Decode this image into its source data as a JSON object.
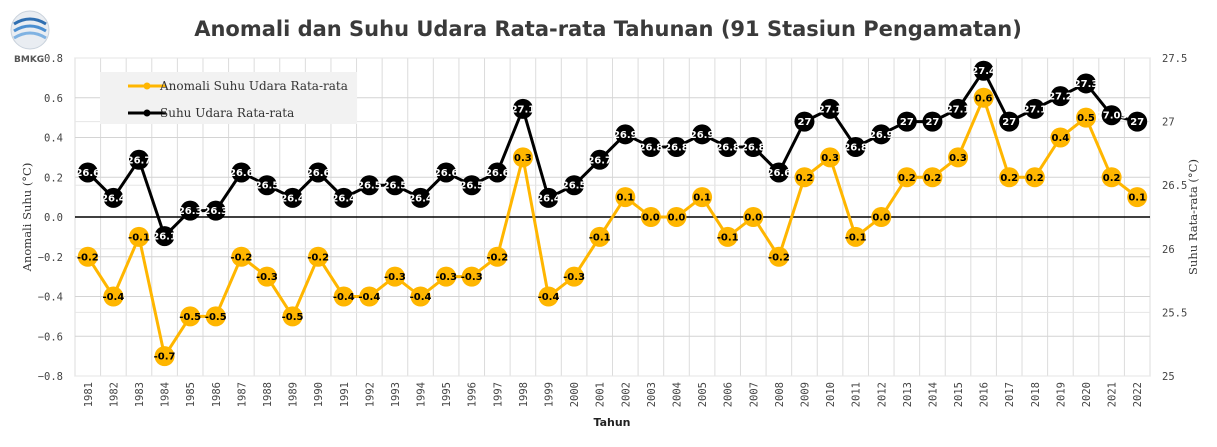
{
  "logo": {
    "text": "BMKG"
  },
  "chart_data": {
    "type": "line",
    "title": "Anomali dan Suhu Udara Rata-rata Tahunan (91 Stasiun Pengamatan)",
    "xlabel": "Tahun",
    "ylabel_left": "Anomali Suhu (°C)",
    "ylabel_right": "Suhu Rata-rata (°C)",
    "ylim_left": [
      -0.8,
      0.8
    ],
    "ylim_right": [
      25,
      27.5
    ],
    "yticks_left": [
      "−0.8",
      "−0.6",
      "−0.4",
      "−0.2",
      "0.0",
      "0.2",
      "0.4",
      "0.6",
      "0.8"
    ],
    "yticks_right": [
      "25",
      "25.5",
      "26",
      "26.5",
      "27",
      "27.5"
    ],
    "grid": true,
    "legend_position": "top-left",
    "categories": [
      "1981",
      "1982",
      "1983",
      "1984",
      "1985",
      "1986",
      "1987",
      "1988",
      "1989",
      "1990",
      "1991",
      "1992",
      "1993",
      "1994",
      "1995",
      "1996",
      "1997",
      "1998",
      "1999",
      "2000",
      "2001",
      "2002",
      "2003",
      "2004",
      "2005",
      "2006",
      "2007",
      "2008",
      "2009",
      "2010",
      "2011",
      "2012",
      "2013",
      "2014",
      "2015",
      "2016",
      "2017",
      "2018",
      "2019",
      "2020",
      "2021",
      "2022"
    ],
    "series": [
      {
        "name": "Anomali Suhu Udara Rata-rata",
        "axis": "left",
        "color": "#FFB600",
        "values": [
          -0.2,
          -0.4,
          -0.1,
          -0.7,
          -0.5,
          -0.5,
          -0.2,
          -0.3,
          -0.5,
          -0.2,
          -0.4,
          -0.4,
          -0.3,
          -0.4,
          -0.3,
          -0.3,
          -0.2,
          0.3,
          -0.4,
          -0.3,
          -0.1,
          0.1,
          0.0,
          0.0,
          0.1,
          -0.1,
          0.0,
          -0.2,
          0.2,
          0.3,
          -0.1,
          0.0,
          0.2,
          0.2,
          0.3,
          0.6,
          0.2,
          0.2,
          0.4,
          0.5,
          0.2,
          0.1
        ],
        "labels": [
          "-0.2",
          "-0.4",
          "-0.1",
          "-0.7",
          "-0.5",
          "-0.5",
          "-0.2",
          "-0.3",
          "-0.5",
          "-0.2",
          "-0.4",
          "-0.4",
          "-0.3",
          "-0.4",
          "-0.3",
          "-0.3",
          "-0.2",
          "0.3",
          "-0.4",
          "-0.3",
          "-0.1",
          "0.1",
          "0.0",
          "0.0",
          "0.1",
          "-0.1",
          "0.0",
          "-0.2",
          "0.2",
          "0.3",
          "-0.1",
          "0.0",
          "0.2",
          "0.2",
          "0.3",
          "0.6",
          "0.2",
          "0.2",
          "0.4",
          "0.5",
          "0.2",
          "0.1"
        ]
      },
      {
        "name": "Suhu Udara Rata-rata",
        "axis": "right",
        "color": "#000000",
        "values": [
          26.6,
          26.4,
          26.7,
          26.1,
          26.3,
          26.3,
          26.6,
          26.5,
          26.4,
          26.6,
          26.4,
          26.5,
          26.5,
          26.4,
          26.6,
          26.5,
          26.6,
          27.1,
          26.4,
          26.5,
          26.7,
          26.9,
          26.8,
          26.8,
          26.9,
          26.8,
          26.8,
          26.6,
          27.0,
          27.1,
          26.8,
          26.9,
          27.0,
          27.0,
          27.1,
          27.4,
          27.0,
          27.1,
          27.2,
          27.3,
          27.05,
          27.0
        ],
        "labels": [
          "26.6",
          "26.4",
          "26.7",
          "26.1",
          "26.3",
          "26.3",
          "26.6",
          "26.5",
          "26.4",
          "26.6",
          "26.4",
          "26.5",
          "26.5",
          "26.4",
          "26.6",
          "26.5",
          "26.6",
          "27.1",
          "26.4",
          "26.5",
          "26.7",
          "26.9",
          "26.8",
          "26.8",
          "26.9",
          "26.8",
          "26.8",
          "26.6",
          "27",
          "27.1",
          "26.8",
          "26.9",
          "27",
          "27",
          "27.1",
          "27.4",
          "27",
          "27.1",
          "27.2",
          "27.3",
          "27.05",
          "27"
        ]
      }
    ]
  }
}
